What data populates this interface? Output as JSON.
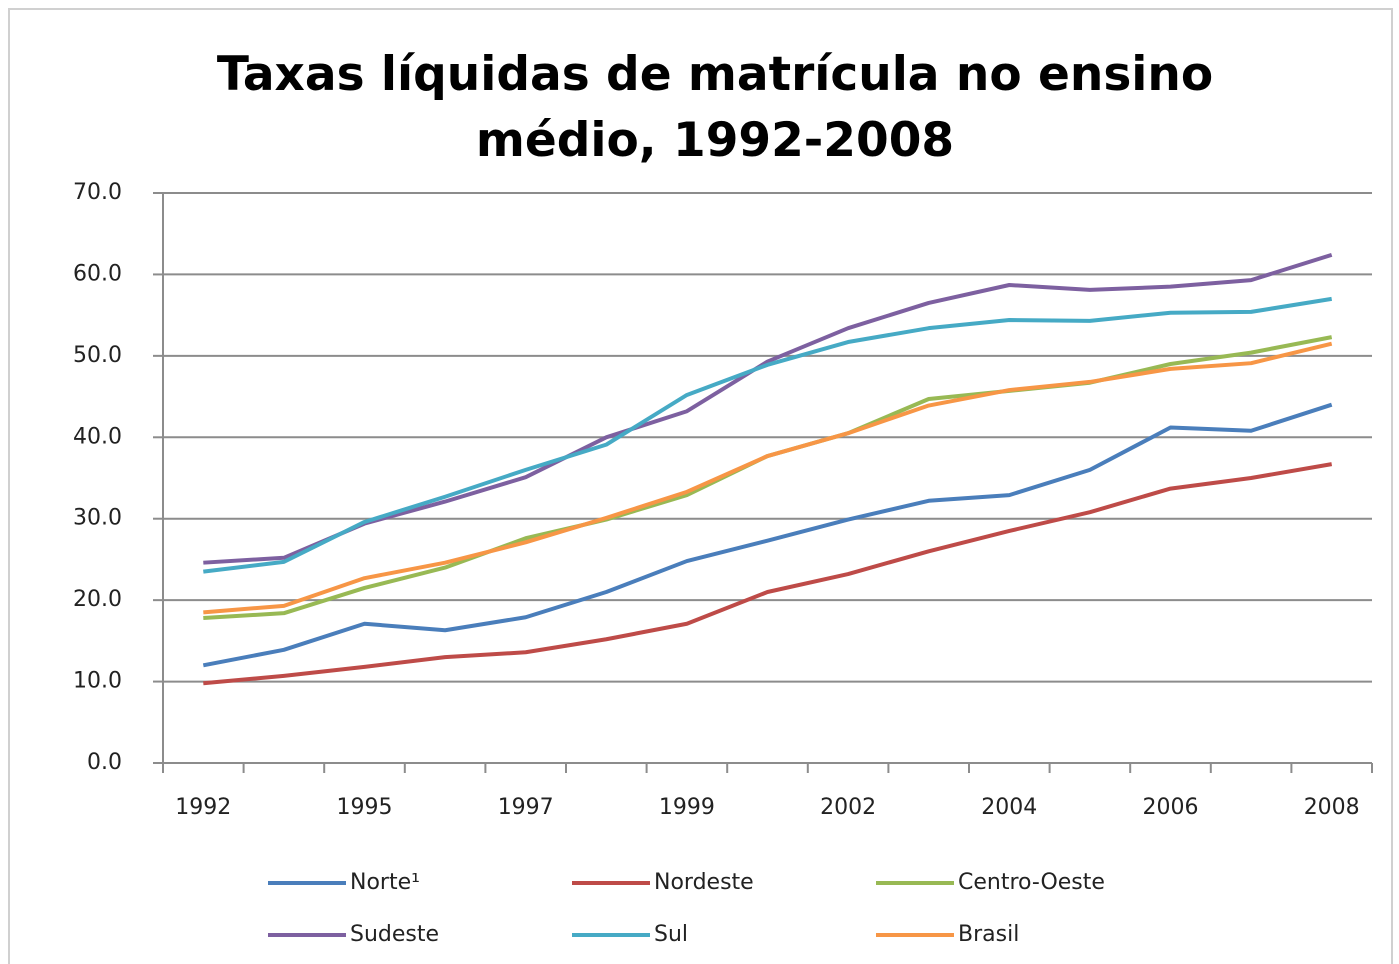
{
  "chart_data": {
    "type": "line",
    "title": "Taxas líquidas de matrícula no ensino médio, 1992-2008",
    "categories": [
      "1992",
      null,
      "1995",
      null,
      "1997",
      null,
      "1999",
      null,
      "2002",
      null,
      "2004",
      null,
      "2006",
      null,
      "2008"
    ],
    "ylim": [
      0,
      70
    ],
    "yticks": [
      {
        "value": 0,
        "label": "0.0"
      },
      {
        "value": 10,
        "label": "10.0"
      },
      {
        "value": 20,
        "label": "20.0"
      },
      {
        "value": 30,
        "label": "30.0"
      },
      {
        "value": 40,
        "label": "40.0"
      },
      {
        "value": 50,
        "label": "50.0"
      },
      {
        "value": 60,
        "label": "60.0"
      },
      {
        "value": 70,
        "label": "70.0"
      }
    ],
    "grid": true,
    "legend": "bottom",
    "series": [
      {
        "name": "Norte¹",
        "color": "#4a7ebb",
        "values": [
          12.0,
          13.9,
          17.1,
          16.3,
          17.9,
          21.0,
          24.8,
          27.3,
          29.9,
          32.2,
          32.9,
          36.0,
          41.2,
          40.8,
          44.0
        ]
      },
      {
        "name": "Nordeste",
        "color": "#be4b48",
        "values": [
          9.8,
          10.7,
          11.8,
          13.0,
          13.6,
          15.2,
          17.1,
          21.0,
          23.2,
          26.0,
          28.5,
          30.8,
          33.7,
          35.0,
          36.7
        ]
      },
      {
        "name": "Centro-Oeste",
        "color": "#98b954",
        "values": [
          17.8,
          18.4,
          21.5,
          24.0,
          27.6,
          29.9,
          32.9,
          37.7,
          40.5,
          44.7,
          45.7,
          46.7,
          49.0,
          50.4,
          52.3
        ]
      },
      {
        "name": "Sudeste",
        "color": "#7d60a0",
        "values": [
          24.6,
          25.2,
          29.4,
          32.1,
          35.1,
          40.0,
          43.2,
          49.3,
          53.4,
          56.5,
          58.7,
          58.1,
          58.5,
          59.3,
          62.4
        ]
      },
      {
        "name": "Sul",
        "color": "#46aac5",
        "values": [
          23.5,
          24.7,
          29.6,
          32.7,
          36.0,
          39.1,
          45.2,
          48.9,
          51.7,
          53.4,
          54.4,
          54.3,
          55.3,
          55.4,
          57.0
        ]
      },
      {
        "name": "Brasil",
        "color": "#f79646",
        "values": [
          18.5,
          19.3,
          22.7,
          24.6,
          27.1,
          30.1,
          33.3,
          37.7,
          40.5,
          43.9,
          45.8,
          46.8,
          48.4,
          49.1,
          51.5
        ]
      }
    ]
  }
}
